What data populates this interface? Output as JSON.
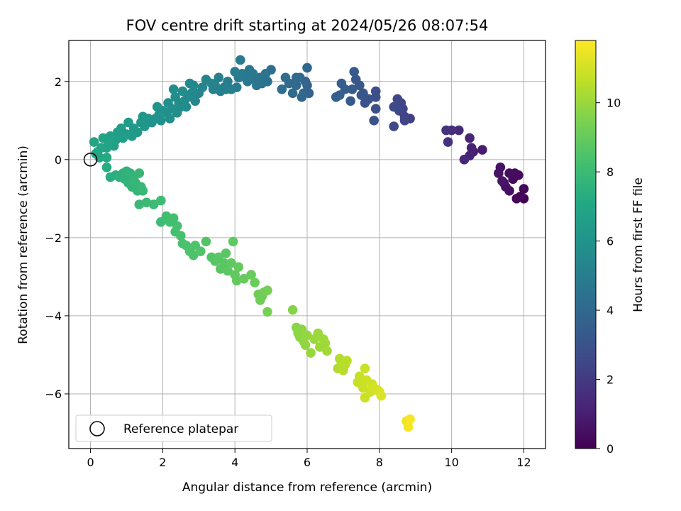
{
  "chart_data": {
    "type": "scatter",
    "title": "FOV centre drift starting at 2024/05/26 08:07:54",
    "xlabel": "Angular distance from reference (arcmin)",
    "ylabel": "Rotation from reference (arcmin)",
    "xlim": [
      -0.6,
      12.6
    ],
    "ylim": [
      -7.4,
      3.05
    ],
    "x_ticks": [
      0,
      2,
      4,
      6,
      8,
      10,
      12
    ],
    "y_ticks": [
      -6,
      -4,
      -2,
      0,
      2
    ],
    "grid": true,
    "legend": {
      "location": "lower-left",
      "entries": [
        "Reference platepar"
      ]
    },
    "reference_point": {
      "label": "Reference platepar",
      "x": 0,
      "y": 0
    },
    "colorbar": {
      "label": "Hours from first FF file",
      "colormap": "viridis",
      "range": [
        0,
        11.8
      ],
      "ticks": [
        0,
        2,
        4,
        6,
        8,
        10
      ]
    },
    "points": [
      [
        12.0,
        -1.0,
        0.05
      ],
      [
        11.9,
        -0.95,
        0.1
      ],
      [
        11.8,
        -1.0,
        0.15
      ],
      [
        12.0,
        -0.75,
        0.2
      ],
      [
        11.85,
        -0.4,
        0.25
      ],
      [
        11.7,
        -0.5,
        0.3
      ],
      [
        11.75,
        -0.35,
        0.35
      ],
      [
        11.6,
        -0.35,
        0.4
      ],
      [
        11.6,
        -0.8,
        0.45
      ],
      [
        11.5,
        -0.7,
        0.5
      ],
      [
        11.45,
        -0.6,
        0.55
      ],
      [
        11.3,
        -0.35,
        0.6
      ],
      [
        11.35,
        -0.2,
        0.65
      ],
      [
        11.4,
        -0.55,
        0.7
      ],
      [
        10.85,
        0.25,
        0.95
      ],
      [
        10.6,
        0.2,
        1.05
      ],
      [
        10.55,
        0.3,
        1.1
      ],
      [
        10.5,
        0.1,
        1.15
      ],
      [
        10.5,
        0.55,
        1.2
      ],
      [
        10.35,
        0.0,
        1.3
      ],
      [
        10.2,
        0.75,
        1.45
      ],
      [
        10.0,
        0.75,
        1.55
      ],
      [
        9.9,
        0.45,
        1.65
      ],
      [
        9.85,
        0.75,
        1.7
      ],
      [
        8.85,
        1.05,
        2.2
      ],
      [
        8.7,
        1.1,
        2.25
      ],
      [
        8.65,
        1.3,
        2.3
      ],
      [
        8.6,
        1.45,
        2.35
      ],
      [
        8.7,
        1.0,
        2.4
      ],
      [
        8.5,
        1.55,
        2.45
      ],
      [
        8.55,
        1.25,
        2.5
      ],
      [
        8.45,
        1.35,
        2.55
      ],
      [
        8.4,
        0.85,
        2.6
      ],
      [
        8.4,
        1.35,
        2.65
      ],
      [
        7.9,
        1.75,
        2.8
      ],
      [
        7.9,
        1.6,
        2.85
      ],
      [
        7.9,
        1.3,
        2.9
      ],
      [
        7.85,
        1.0,
        2.95
      ],
      [
        7.7,
        1.55,
        3.0
      ],
      [
        7.6,
        1.45,
        3.05
      ],
      [
        7.55,
        1.7,
        3.1
      ],
      [
        7.5,
        1.65,
        3.15
      ],
      [
        7.45,
        1.9,
        3.2
      ],
      [
        7.35,
        2.05,
        3.25
      ],
      [
        7.2,
        1.5,
        3.3
      ],
      [
        7.3,
        2.25,
        3.35
      ],
      [
        7.25,
        1.8,
        3.4
      ],
      [
        7.05,
        1.8,
        3.45
      ],
      [
        6.95,
        1.95,
        3.5
      ],
      [
        6.8,
        1.6,
        3.55
      ],
      [
        6.9,
        1.65,
        3.55
      ],
      [
        6.05,
        1.7,
        3.7
      ],
      [
        6.0,
        1.9,
        3.75
      ],
      [
        5.95,
        2.0,
        3.8
      ],
      [
        5.9,
        1.7,
        3.85
      ],
      [
        5.85,
        1.6,
        3.9
      ],
      [
        6.0,
        2.35,
        3.9
      ],
      [
        5.8,
        2.1,
        3.95
      ],
      [
        5.7,
        1.9,
        4.0
      ],
      [
        5.6,
        1.7,
        4.05
      ],
      [
        5.7,
        2.1,
        4.05
      ],
      [
        5.5,
        1.95,
        4.1
      ],
      [
        5.4,
        2.1,
        4.15
      ],
      [
        5.3,
        1.8,
        4.2
      ],
      [
        5.0,
        2.3,
        4.3
      ],
      [
        4.9,
        2.0,
        4.4
      ],
      [
        4.85,
        2.2,
        4.45
      ],
      [
        4.75,
        1.95,
        4.5
      ],
      [
        4.7,
        2.1,
        4.55
      ],
      [
        4.6,
        1.9,
        4.6
      ],
      [
        4.55,
        2.05,
        4.6
      ],
      [
        4.5,
        2.2,
        4.65
      ],
      [
        4.4,
        2.3,
        4.7
      ],
      [
        4.35,
        2.0,
        4.7
      ],
      [
        4.3,
        2.1,
        4.75
      ],
      [
        4.2,
        2.2,
        4.8
      ],
      [
        4.15,
        2.55,
        4.8
      ],
      [
        4.1,
        2.1,
        4.85
      ],
      [
        4.05,
        1.85,
        4.9
      ],
      [
        4.0,
        2.25,
        4.9
      ],
      [
        3.9,
        1.8,
        4.95
      ],
      [
        3.8,
        2.0,
        5.0
      ],
      [
        3.75,
        1.8,
        5.05
      ],
      [
        3.7,
        1.85,
        5.1
      ],
      [
        3.6,
        1.75,
        5.15
      ],
      [
        3.55,
        2.1,
        5.15
      ],
      [
        3.45,
        1.9,
        5.2
      ],
      [
        3.4,
        1.8,
        5.25
      ],
      [
        3.35,
        1.95,
        5.25
      ],
      [
        3.2,
        2.05,
        5.3
      ],
      [
        3.1,
        1.85,
        5.35
      ],
      [
        3.0,
        1.7,
        5.35
      ],
      [
        2.9,
        1.5,
        5.4
      ],
      [
        2.85,
        1.9,
        5.45
      ],
      [
        2.8,
        1.7,
        5.5
      ],
      [
        2.75,
        1.95,
        5.5
      ],
      [
        2.7,
        1.6,
        5.55
      ],
      [
        2.65,
        1.35,
        5.6
      ],
      [
        2.6,
        1.5,
        5.6
      ],
      [
        2.55,
        1.75,
        5.65
      ],
      [
        2.5,
        1.35,
        5.65
      ],
      [
        2.45,
        1.45,
        5.7
      ],
      [
        2.4,
        1.2,
        5.7
      ],
      [
        2.35,
        1.6,
        5.75
      ],
      [
        2.3,
        1.8,
        5.75
      ],
      [
        2.25,
        1.3,
        5.8
      ],
      [
        2.2,
        1.05,
        5.8
      ],
      [
        2.15,
        1.45,
        5.85
      ],
      [
        2.1,
        1.2,
        5.85
      ],
      [
        2.0,
        1.25,
        5.9
      ],
      [
        1.95,
        1.0,
        5.9
      ],
      [
        1.9,
        1.15,
        5.95
      ],
      [
        1.85,
        1.35,
        5.95
      ],
      [
        1.8,
        1.05,
        6.0
      ],
      [
        1.7,
        0.95,
        6.05
      ],
      [
        1.6,
        1.05,
        6.1
      ],
      [
        1.5,
        0.85,
        6.15
      ],
      [
        1.45,
        1.1,
        6.15
      ],
      [
        1.4,
        0.95,
        6.2
      ],
      [
        1.3,
        0.7,
        6.25
      ],
      [
        1.2,
        0.8,
        6.3
      ],
      [
        1.15,
        0.6,
        6.35
      ],
      [
        1.05,
        0.95,
        6.4
      ],
      [
        1.0,
        0.65,
        6.45
      ],
      [
        0.9,
        0.55,
        6.5
      ],
      [
        0.85,
        0.8,
        6.5
      ],
      [
        0.75,
        0.7,
        6.55
      ],
      [
        0.7,
        0.5,
        6.6
      ],
      [
        0.65,
        0.35,
        6.65
      ],
      [
        0.55,
        0.6,
        6.7
      ],
      [
        0.5,
        0.45,
        6.75
      ],
      [
        0.45,
        0.3,
        6.75
      ],
      [
        0.35,
        0.55,
        6.8
      ],
      [
        0.3,
        0.3,
        6.85
      ],
      [
        0.2,
        0.2,
        6.9
      ],
      [
        0.1,
        0.45,
        6.95
      ],
      [
        0.15,
        0.15,
        7.0
      ],
      [
        0.25,
        0.05,
        7.0
      ],
      [
        0.45,
        0.05,
        7.15
      ],
      [
        0.45,
        -0.2,
        7.25
      ],
      [
        0.55,
        -0.45,
        7.3
      ],
      [
        0.7,
        -0.4,
        7.4
      ],
      [
        0.8,
        -0.45,
        7.45
      ],
      [
        0.9,
        -0.35,
        7.5
      ],
      [
        0.95,
        -0.5,
        7.55
      ],
      [
        1.0,
        -0.3,
        7.6
      ],
      [
        1.05,
        -0.6,
        7.65
      ],
      [
        1.1,
        -0.35,
        7.65
      ],
      [
        1.15,
        -0.7,
        7.7
      ],
      [
        1.2,
        -0.5,
        7.7
      ],
      [
        1.25,
        -0.6,
        7.75
      ],
      [
        1.3,
        -0.8,
        7.75
      ],
      [
        1.35,
        -0.35,
        7.8
      ],
      [
        1.4,
        -0.7,
        7.8
      ],
      [
        1.45,
        -0.8,
        7.85
      ],
      [
        1.35,
        -1.15,
        7.9
      ],
      [
        1.55,
        -1.1,
        7.95
      ],
      [
        1.75,
        -1.15,
        8.0
      ],
      [
        1.95,
        -1.6,
        8.05
      ],
      [
        1.95,
        -1.05,
        8.1
      ],
      [
        2.1,
        -1.45,
        8.15
      ],
      [
        2.2,
        -1.6,
        8.2
      ],
      [
        2.3,
        -1.5,
        8.2
      ],
      [
        2.35,
        -1.85,
        8.25
      ],
      [
        2.4,
        -1.7,
        8.3
      ],
      [
        2.5,
        -1.95,
        8.3
      ],
      [
        2.55,
        -2.15,
        8.35
      ],
      [
        2.65,
        -2.2,
        8.4
      ],
      [
        2.75,
        -2.35,
        8.45
      ],
      [
        2.85,
        -2.45,
        8.45
      ],
      [
        2.9,
        -2.2,
        8.5
      ],
      [
        3.05,
        -2.35,
        8.55
      ],
      [
        3.2,
        -2.1,
        8.55
      ],
      [
        3.35,
        -2.5,
        8.6
      ],
      [
        3.45,
        -2.6,
        8.65
      ],
      [
        3.55,
        -2.5,
        8.7
      ],
      [
        3.6,
        -2.8,
        8.7
      ],
      [
        3.7,
        -2.65,
        8.75
      ],
      [
        3.75,
        -2.4,
        8.75
      ],
      [
        3.8,
        -2.85,
        8.8
      ],
      [
        3.9,
        -2.65,
        8.85
      ],
      [
        3.95,
        -2.1,
        8.85
      ],
      [
        4.0,
        -2.95,
        8.9
      ],
      [
        4.05,
        -3.1,
        8.9
      ],
      [
        4.1,
        -2.75,
        8.95
      ],
      [
        4.25,
        -3.05,
        9.0
      ],
      [
        4.45,
        -2.95,
        9.05
      ],
      [
        4.55,
        -3.15,
        9.1
      ],
      [
        4.65,
        -3.45,
        9.15
      ],
      [
        4.7,
        -3.6,
        9.2
      ],
      [
        4.75,
        -3.5,
        9.2
      ],
      [
        4.8,
        -3.4,
        9.25
      ],
      [
        4.9,
        -3.35,
        9.3
      ],
      [
        4.9,
        -3.9,
        9.35
      ],
      [
        5.6,
        -3.85,
        9.6
      ],
      [
        5.7,
        -4.3,
        9.7
      ],
      [
        5.75,
        -4.45,
        9.75
      ],
      [
        5.8,
        -4.55,
        9.75
      ],
      [
        5.85,
        -4.35,
        9.8
      ],
      [
        5.9,
        -4.65,
        9.85
      ],
      [
        5.95,
        -4.75,
        9.85
      ],
      [
        6.0,
        -4.5,
        9.9
      ],
      [
        6.1,
        -4.95,
        9.95
      ],
      [
        6.2,
        -4.6,
        10.0
      ],
      [
        6.3,
        -4.45,
        10.0
      ],
      [
        6.35,
        -4.8,
        10.05
      ],
      [
        6.45,
        -4.6,
        10.1
      ],
      [
        6.5,
        -4.7,
        10.1
      ],
      [
        6.55,
        -4.9,
        10.15
      ],
      [
        6.85,
        -5.35,
        10.4
      ],
      [
        6.9,
        -5.1,
        10.45
      ],
      [
        6.95,
        -5.2,
        10.45
      ],
      [
        7.0,
        -5.4,
        10.5
      ],
      [
        7.05,
        -5.25,
        10.55
      ],
      [
        7.1,
        -5.15,
        10.55
      ],
      [
        7.4,
        -5.7,
        10.75
      ],
      [
        7.45,
        -5.55,
        10.8
      ],
      [
        7.5,
        -5.75,
        10.8
      ],
      [
        7.55,
        -5.85,
        10.85
      ],
      [
        7.6,
        -5.35,
        10.85
      ],
      [
        7.6,
        -6.1,
        10.9
      ],
      [
        7.65,
        -5.65,
        10.9
      ],
      [
        7.75,
        -5.95,
        10.95
      ],
      [
        7.8,
        -5.75,
        10.95
      ],
      [
        7.85,
        -5.85,
        11.0
      ],
      [
        7.95,
        -5.9,
        11.05
      ],
      [
        8.0,
        -5.95,
        11.1
      ],
      [
        8.05,
        -6.05,
        11.15
      ],
      [
        8.75,
        -6.7,
        11.55
      ],
      [
        8.8,
        -6.85,
        11.65
      ],
      [
        8.85,
        -6.65,
        11.7
      ]
    ]
  }
}
